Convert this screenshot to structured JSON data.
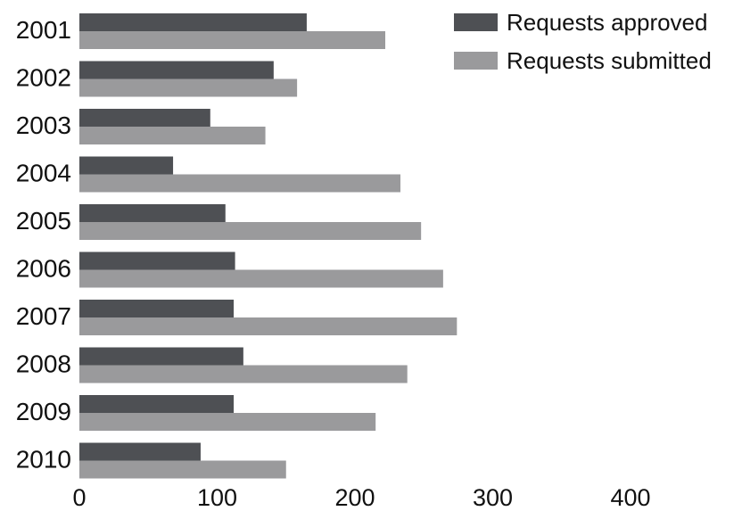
{
  "chart_data": {
    "type": "bar",
    "orientation": "horizontal",
    "categories": [
      "2001",
      "2002",
      "2003",
      "2004",
      "2005",
      "2006",
      "2007",
      "2008",
      "2009",
      "2010"
    ],
    "series": [
      {
        "name": "Requests approved",
        "color": "#4e5054",
        "values": [
          165,
          141,
          95,
          68,
          106,
          113,
          112,
          119,
          112,
          88
        ]
      },
      {
        "name": "Requests submitted",
        "color": "#9a9a9c",
        "values": [
          222,
          158,
          135,
          233,
          248,
          264,
          274,
          238,
          215,
          150
        ]
      }
    ],
    "x_ticks": [
      "0",
      "100",
      "200",
      "300",
      "400"
    ],
    "xlim": [
      0,
      400
    ],
    "grid": false,
    "legend_position": "top-right",
    "title": "",
    "xlabel": "",
    "ylabel": ""
  }
}
